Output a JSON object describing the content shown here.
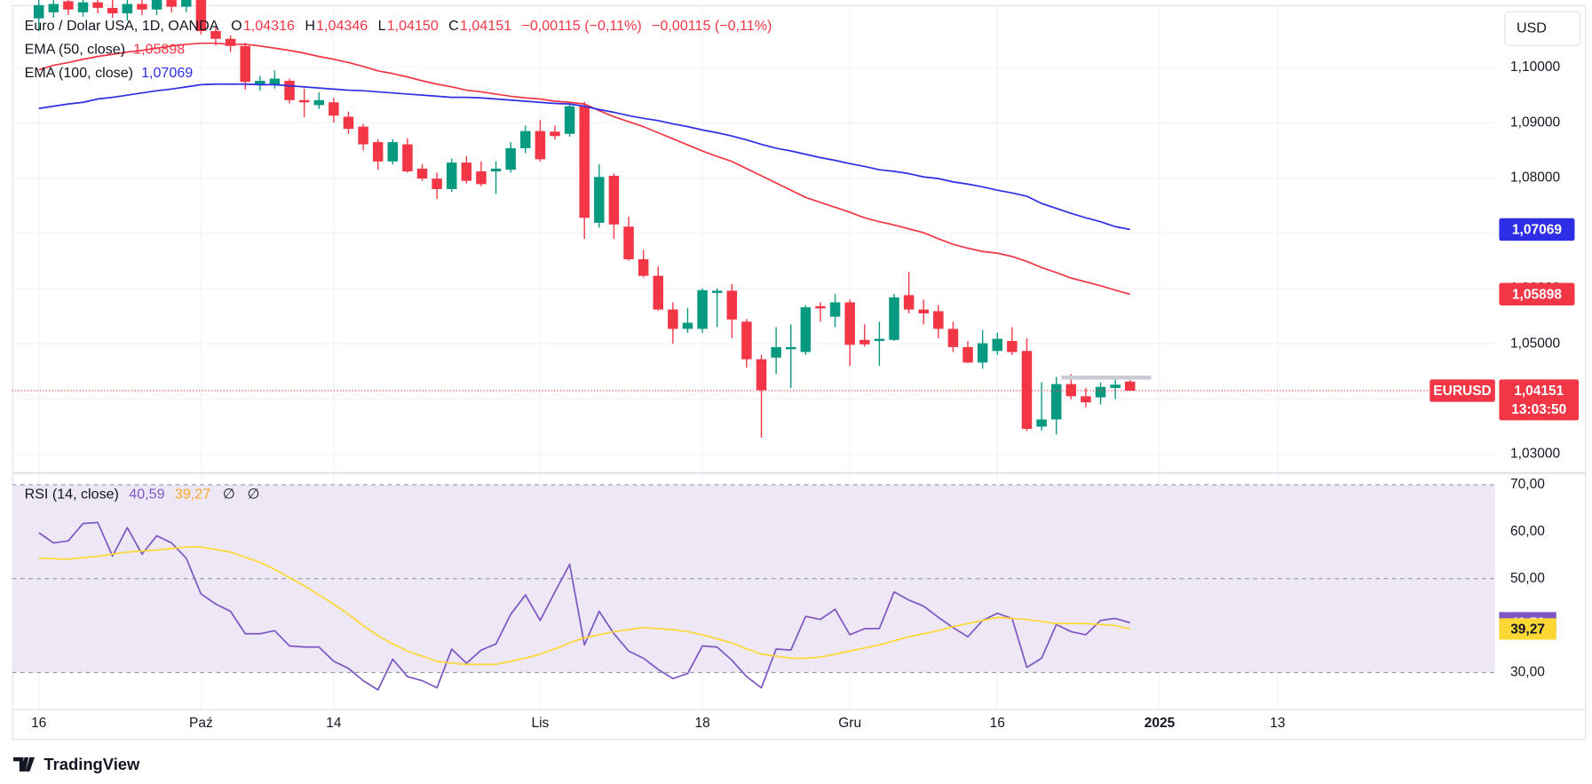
{
  "chart_data": [
    {
      "type": "candlestick",
      "title": "Euro / Dolar USA, 1D, OANDA",
      "legend": [
        {
          "label": "O",
          "value_label": "1,04316"
        },
        {
          "label": "H",
          "value_label": "1,04346"
        },
        {
          "label": "L",
          "value_label": "1,04150"
        },
        {
          "label": "C",
          "value_label": "1,04151"
        }
      ],
      "change_labels": [
        "−0,00115 (−0,11%)",
        "−0,00115 (−0,11%)"
      ],
      "colors": {
        "up": "#089981",
        "down": "#f23645"
      },
      "xlim": [
        -1.8,
        98.75
      ],
      "xticks": [
        {
          "value": 0,
          "label": "16"
        },
        {
          "value": 11,
          "label": "Paź"
        },
        {
          "value": 20,
          "label": "14"
        },
        {
          "value": 34,
          "label": "Lis"
        },
        {
          "value": 45,
          "label": "18"
        },
        {
          "value": 55,
          "label": "Gru"
        },
        {
          "value": 65,
          "label": "16"
        },
        {
          "value": 76,
          "label": "2025"
        },
        {
          "value": 84,
          "label": "13"
        }
      ],
      "ylim": [
        1.0267,
        1.1113
      ],
      "yticks": [
        {
          "value": 1.03,
          "label": "1,03000"
        },
        {
          "value": 1.04,
          "label": "1,04000"
        },
        {
          "value": 1.05,
          "label": "1,05000"
        },
        {
          "value": 1.06,
          "label": "1,06000"
        },
        {
          "value": 1.07,
          "label": "1,07000"
        },
        {
          "value": 1.08,
          "label": "1,08000"
        },
        {
          "value": 1.09,
          "label": "1,09000"
        },
        {
          "value": 1.1,
          "label": "1,10000"
        }
      ],
      "grid": true,
      "open": [
        1.1089,
        1.11,
        1.112,
        1.11,
        1.1118,
        1.1108,
        1.1098,
        1.1115,
        1.1105,
        1.1125,
        1.111,
        1.1125,
        1.1066,
        1.1052,
        1.1039,
        1.0969,
        1.0969,
        1.0976,
        1.0941,
        1.0932,
        1.0937,
        1.0911,
        1.0893,
        1.0865,
        1.083,
        1.0861,
        1.0817,
        1.0799,
        1.078,
        1.0828,
        1.0812,
        1.0812,
        1.0815,
        1.0854,
        1.0885,
        1.0884,
        1.088,
        1.093,
        1.0719,
        1.0804,
        1.0712,
        1.0653,
        1.0623,
        1.0562,
        1.0527,
        1.0527,
        1.0592,
        1.0596,
        1.054,
        1.0472,
        1.0475,
        1.049,
        1.0485,
        1.0568,
        1.0549,
        1.0575,
        1.0507,
        1.0505,
        1.0507,
        1.0588,
        1.0562,
        1.0559,
        1.0527,
        1.0494,
        1.0466,
        1.0487,
        1.0505,
        1.0487,
        1.035,
        1.0363,
        1.0427,
        1.0405,
        1.0403,
        1.042,
        1.04316
      ],
      "high": [
        1.1125,
        1.113,
        1.1135,
        1.113,
        1.1128,
        1.113,
        1.1125,
        1.113,
        1.1135,
        1.114,
        1.1135,
        1.114,
        1.1075,
        1.1058,
        1.1045,
        1.0985,
        1.0995,
        1.098,
        1.0962,
        1.0955,
        1.0945,
        1.092,
        1.0898,
        1.087,
        1.087,
        1.0872,
        1.0825,
        1.081,
        1.0835,
        1.084,
        1.083,
        1.083,
        1.0865,
        1.0895,
        1.0905,
        1.0895,
        1.0935,
        1.0938,
        1.0825,
        1.0808,
        1.073,
        1.067,
        1.064,
        1.0575,
        1.0565,
        1.06,
        1.06,
        1.0608,
        1.0545,
        1.048,
        1.053,
        1.0535,
        1.057,
        1.0575,
        1.059,
        1.058,
        1.0535,
        1.054,
        1.059,
        1.063,
        1.058,
        1.057,
        1.054,
        1.0505,
        1.0525,
        1.052,
        1.053,
        1.051,
        1.043,
        1.044,
        1.0445,
        1.042,
        1.043,
        1.044,
        1.04346
      ],
      "low": [
        1.1066,
        1.109,
        1.1095,
        1.1092,
        1.1098,
        1.109,
        1.1085,
        1.1095,
        1.1095,
        1.11,
        1.11,
        1.106,
        1.104,
        1.1028,
        1.096,
        1.0958,
        1.0962,
        1.0935,
        1.091,
        1.0925,
        1.09,
        1.088,
        1.085,
        1.0815,
        1.0825,
        1.081,
        1.0795,
        1.0762,
        1.0775,
        1.079,
        1.0785,
        1.0771,
        1.081,
        1.0845,
        1.083,
        1.087,
        1.0875,
        1.069,
        1.071,
        1.069,
        1.065,
        1.062,
        1.056,
        1.05,
        1.052,
        1.052,
        1.053,
        1.051,
        1.0457,
        1.033,
        1.0445,
        1.042,
        1.048,
        1.054,
        1.053,
        1.046,
        1.0495,
        1.046,
        1.0505,
        1.0555,
        1.0535,
        1.051,
        1.0485,
        1.0465,
        1.0455,
        1.048,
        1.048,
        1.0342,
        1.0343,
        1.0336,
        1.04,
        1.0385,
        1.039,
        1.04,
        1.0415
      ],
      "close": [
        1.1113,
        1.1115,
        1.1105,
        1.1118,
        1.1108,
        1.1098,
        1.1115,
        1.1105,
        1.1125,
        1.111,
        1.1125,
        1.1066,
        1.1052,
        1.1039,
        1.0974,
        1.0976,
        1.098,
        1.0941,
        1.0937,
        1.0941,
        1.0913,
        1.0889,
        1.0861,
        1.083,
        1.0865,
        1.0812,
        1.0799,
        1.078,
        1.0828,
        1.0795,
        1.0789,
        1.0817,
        1.0854,
        1.0885,
        1.0834,
        1.0876,
        1.093,
        1.0728,
        1.0802,
        1.0716,
        1.0653,
        1.0623,
        1.0562,
        1.0527,
        1.0538,
        1.0597,
        1.0596,
        1.0544,
        1.0472,
        1.0416,
        1.0494,
        1.0494,
        1.0566,
        1.0564,
        1.0575,
        1.0498,
        1.0499,
        1.0509,
        1.0584,
        1.0562,
        1.0555,
        1.0527,
        1.0494,
        1.0466,
        1.0501,
        1.0509,
        1.0485,
        1.0346,
        1.0363,
        1.0427,
        1.0405,
        1.0394,
        1.0422,
        1.0426,
        1.04151
      ],
      "series": [
        {
          "name": "EMA (50, close)",
          "color": "#f23645",
          "last_label": "1,05898",
          "values": [
            1.0996,
            1.1004,
            1.1009,
            1.1015,
            1.102,
            1.1024,
            1.1028,
            1.1031,
            1.1035,
            1.1039,
            1.1042,
            1.1044,
            1.1044,
            1.1042,
            1.1042,
            1.1039,
            1.1035,
            1.1031,
            1.1026,
            1.102,
            1.1015,
            1.1009,
            1.1002,
            1.0994,
            1.0989,
            1.0983,
            1.0976,
            1.097,
            1.0965,
            1.0959,
            1.0956,
            1.0952,
            1.0948,
            1.0945,
            1.0943,
            1.0939,
            1.0937,
            1.0934,
            1.0922,
            1.0911,
            1.0902,
            1.0893,
            1.0882,
            1.0871,
            1.086,
            1.0849,
            1.0839,
            1.083,
            1.0817,
            1.0804,
            1.0791,
            1.0778,
            1.0765,
            1.0756,
            1.0747,
            1.0738,
            1.0728,
            1.0721,
            1.0715,
            1.0708,
            1.0701,
            1.069,
            1.068,
            1.0673,
            1.0667,
            1.0664,
            1.0658,
            1.0649,
            1.0638,
            1.0629,
            1.0619,
            1.0612,
            1.0605,
            1.0597,
            1.05898
          ]
        },
        {
          "name": "EMA (100, close)",
          "color": "#2e2ee6",
          "last_label": "1,07069",
          "values": [
            1.0926,
            1.093,
            1.0934,
            1.0937,
            1.0943,
            1.0946,
            1.095,
            1.0954,
            1.0958,
            1.0961,
            1.0965,
            1.0969,
            1.097,
            1.097,
            1.097,
            1.0969,
            1.0969,
            1.0967,
            1.0965,
            1.0963,
            1.0961,
            1.0959,
            1.0958,
            1.0956,
            1.0954,
            1.0952,
            1.095,
            1.0948,
            1.0946,
            1.0946,
            1.0945,
            1.0943,
            1.0941,
            1.0939,
            1.0937,
            1.0935,
            1.0934,
            1.093,
            1.0924,
            1.0919,
            1.0913,
            1.0908,
            1.0904,
            1.0898,
            1.0893,
            1.0887,
            1.0882,
            1.0876,
            1.0869,
            1.0861,
            1.0854,
            1.0849,
            1.0843,
            1.0837,
            1.0832,
            1.0826,
            1.0821,
            1.0815,
            1.0812,
            1.0808,
            1.0802,
            1.0799,
            1.0793,
            1.0789,
            1.0784,
            1.0778,
            1.0773,
            1.0767,
            1.0754,
            1.0745,
            1.0736,
            1.0728,
            1.0721,
            1.0712,
            1.07069
          ]
        }
      ],
      "currency": "USD",
      "symbol": "EURUSD",
      "last_price_label": "1,04151",
      "countdown": "13:03:50"
    },
    {
      "type": "line",
      "title": "RSI (14, close)",
      "extra_labels": [
        "∅",
        "∅"
      ],
      "xlim": [
        -1.8,
        98.75
      ],
      "ylim": [
        22.17,
        72.61
      ],
      "yticks": [
        {
          "value": 30,
          "label": "30,00"
        },
        {
          "value": 40,
          "label": "40,00"
        },
        {
          "value": 50,
          "label": "50,00"
        },
        {
          "value": 60,
          "label": "60,00"
        },
        {
          "value": 70,
          "label": "70,00"
        }
      ],
      "band": [
        30,
        70
      ],
      "band_color": "#ede7f6",
      "dashed_levels": [
        30,
        50,
        70
      ],
      "series": [
        {
          "color": "#7e57c2",
          "last_label": "40,59",
          "values": [
            59.78,
            57.61,
            58.04,
            61.74,
            61.96,
            54.78,
            60.87,
            55.22,
            59.13,
            57.61,
            54.35,
            46.74,
            44.57,
            43.04,
            38.26,
            38.26,
            38.91,
            35.65,
            35.43,
            35.43,
            32.39,
            30.87,
            28.26,
            26.3,
            32.83,
            29.13,
            28.26,
            26.74,
            35.0,
            31.96,
            34.78,
            36.09,
            42.39,
            46.52,
            41.09,
            47.17,
            53.04,
            35.87,
            43.04,
            38.26,
            34.57,
            33.04,
            30.65,
            28.7,
            29.78,
            35.65,
            35.43,
            32.61,
            29.13,
            26.74,
            35.0,
            34.78,
            41.96,
            41.3,
            43.48,
            38.04,
            39.35,
            39.35,
            47.17,
            45.43,
            44.13,
            41.74,
            39.57,
            37.61,
            41.09,
            42.61,
            41.52,
            31.09,
            33.04,
            40.22,
            38.7,
            38.04,
            41.09,
            41.52,
            40.59
          ]
        },
        {
          "color": "#fdd835",
          "last_label": "39,27",
          "values": [
            54.35,
            54.24,
            54.13,
            54.46,
            54.78,
            55.22,
            55.65,
            55.87,
            56.09,
            56.41,
            56.74,
            56.74,
            56.2,
            55.65,
            54.57,
            53.48,
            51.96,
            50.22,
            48.48,
            46.52,
            44.57,
            42.39,
            40.0,
            37.83,
            36.09,
            34.57,
            33.48,
            32.39,
            31.96,
            31.74,
            31.74,
            31.74,
            32.39,
            33.04,
            33.91,
            35.0,
            36.3,
            37.39,
            38.04,
            38.7,
            39.13,
            39.57,
            39.35,
            39.13,
            38.7,
            38.04,
            37.17,
            36.3,
            35.0,
            33.91,
            33.48,
            33.04,
            33.04,
            33.26,
            33.91,
            34.57,
            35.22,
            35.87,
            36.74,
            37.61,
            38.26,
            38.91,
            39.78,
            40.43,
            41.09,
            41.74,
            41.52,
            41.3,
            40.87,
            40.43,
            40.43,
            40.43,
            40.22,
            40.0,
            39.27
          ]
        }
      ]
    }
  ],
  "watermark": "TradingView"
}
